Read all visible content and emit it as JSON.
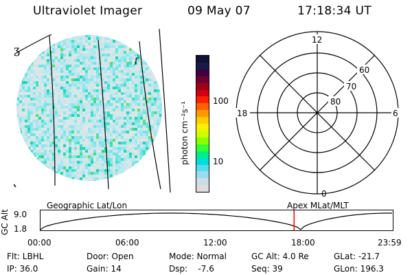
{
  "header": {
    "title": "Ultraviolet Imager",
    "date": "09 May 07",
    "time": "17:18:34 UT"
  },
  "colorbar": {
    "unit_label": "photon cm⁻²s⁻¹",
    "ticks": [
      "100",
      "10"
    ],
    "colors": [
      "#111133",
      "#1a1a4a",
      "#400040",
      "#700030",
      "#a00018",
      "#d00010",
      "#ff2000",
      "#ff6000",
      "#ff9900",
      "#ffcc00",
      "#ffee00",
      "#ccff00",
      "#88ff00",
      "#33ff33",
      "#00ee88",
      "#00dddd",
      "#55ddee",
      "#99ddee",
      "#ccdde6",
      "#dddddd"
    ]
  },
  "polar_plot": {
    "hour_labels": {
      "top": "12",
      "left": "18",
      "right": "6",
      "bottom": "0"
    },
    "lat_labels": [
      "60",
      "70",
      "80"
    ]
  },
  "timeline": {
    "y_label": "GC Alt",
    "y_ticks": [
      "9.0",
      "1.8"
    ],
    "left_title": "Geographic Lat/Lon",
    "right_title": "Apex MLat/MLT",
    "x_ticks": [
      "00:00",
      "06:00",
      "12:00",
      "18:00",
      "23:59"
    ],
    "marker_time_hours": 17.31,
    "marker_color": "#ff0000"
  },
  "status": {
    "row1": [
      "Flt: LBHL",
      "Door: Open",
      "Mode: Normal",
      "GC Alt: 4.0 Re",
      "GLat: -21.7"
    ],
    "row2": [
      "IP: 36.0",
      "Gain: 14",
      "Dsp:    -7.6",
      "Seq: 39",
      "GLon: 196.3"
    ]
  },
  "image_colors": {
    "background_palette": [
      "#dde6e8",
      "#cfe6ea",
      "#bfe8ee",
      "#a6e6ee",
      "#8ee6ee",
      "#6fe6e0",
      "#3fe0c8",
      "#22d4b0",
      "#44dd88",
      "#66dd66"
    ]
  }
}
